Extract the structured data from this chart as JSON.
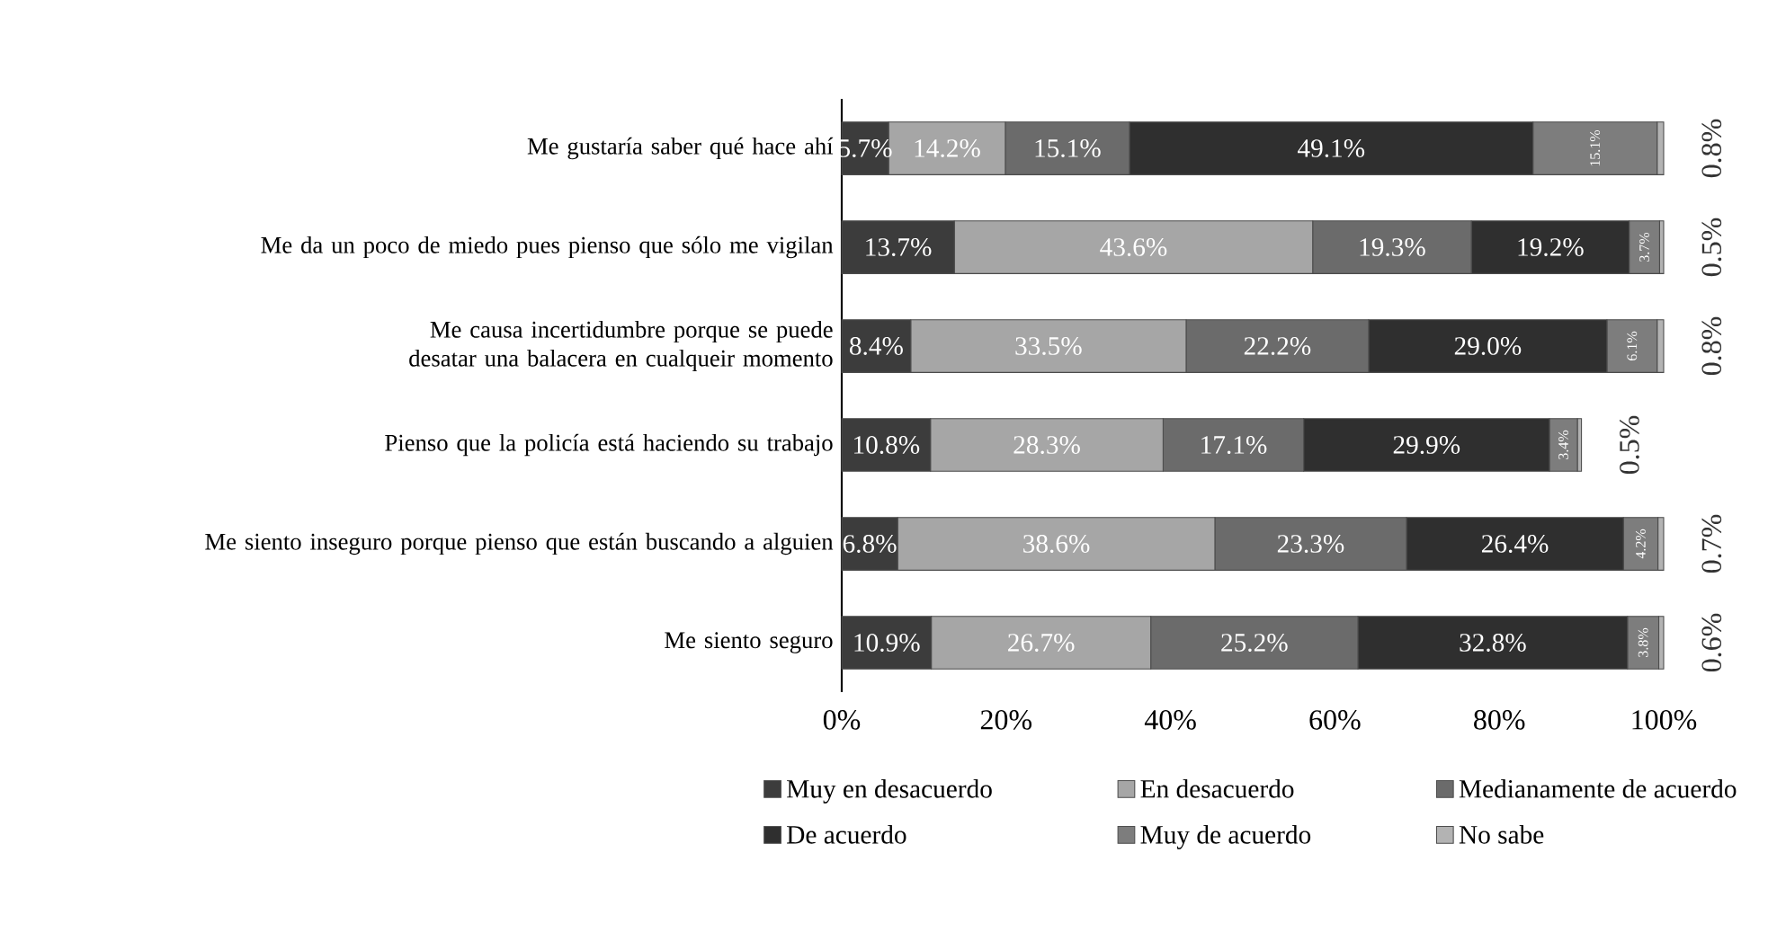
{
  "chart_data": {
    "type": "bar",
    "orientation": "horizontal",
    "stacked": true,
    "categories": [
      "Me gustaría saber qué hace ahí",
      "Me da un poco de miedo pues pienso que sólo me vigilan",
      "Me causa incertidumbre porque se puede desatar una balacera en cualqueir momento",
      "Pienso que la policía está haciendo su trabajo",
      "Me siento inseguro porque pienso que están buscando a alguien",
      "Me siento seguro"
    ],
    "series": [
      {
        "name": "Muy en desacuerdo",
        "color": "#3c3c3c",
        "values": [
          5.7,
          13.7,
          8.4,
          10.8,
          6.8,
          10.9
        ],
        "value_labels": [
          "5.7%",
          "13.7%",
          "8.4%",
          "10.8%",
          "6.8%",
          "10.9%"
        ]
      },
      {
        "name": "En desacuerdo",
        "color": "#a6a6a6",
        "values": [
          14.2,
          43.6,
          33.5,
          28.3,
          38.6,
          26.7
        ],
        "value_labels": [
          "14.2%",
          "43.6%",
          "33.5%",
          "28.3%",
          "38.6%",
          "26.7%"
        ]
      },
      {
        "name": "Medianamente de acuerdo",
        "color": "#6b6b6b",
        "values": [
          15.1,
          19.3,
          22.2,
          17.1,
          23.3,
          25.2
        ],
        "value_labels": [
          "15.1%",
          "19.3%",
          "22.2%",
          "17.1%",
          "23.3%",
          "25.2%"
        ]
      },
      {
        "name": "De acuerdo",
        "color": "#2f2f2f",
        "values": [
          49.1,
          19.2,
          29.0,
          29.9,
          26.4,
          32.8
        ],
        "value_labels": [
          "49.1%",
          "19.2%",
          "29.0%",
          "29.9%",
          "26.4%",
          "32.8%"
        ]
      },
      {
        "name": "Muy de acuerdo",
        "color": "#7d7d7d",
        "values": [
          15.1,
          3.7,
          6.1,
          3.4,
          4.2,
          3.8
        ],
        "value_labels": [
          "15.1%",
          "3.7%",
          "6.1%",
          "3.4%",
          "4.2%",
          "3.8%"
        ]
      },
      {
        "name": "No sabe",
        "color": "#b3b3b3",
        "values": [
          0.8,
          0.5,
          0.8,
          0.5,
          0.7,
          0.6
        ],
        "value_labels": [
          "0.8%",
          "0.5%",
          "0.8%",
          "0.5%",
          "0.7%",
          "0.6%"
        ]
      }
    ],
    "xlim": [
      0,
      100
    ],
    "xticks": [
      {
        "value": 0,
        "label": "0%"
      },
      {
        "value": 20,
        "label": "20%"
      },
      {
        "value": 40,
        "label": "40%"
      },
      {
        "value": 60,
        "label": "60%"
      },
      {
        "value": 80,
        "label": "80%"
      },
      {
        "value": 100,
        "label": "100%"
      }
    ],
    "legend": "bottom",
    "grid": false
  }
}
